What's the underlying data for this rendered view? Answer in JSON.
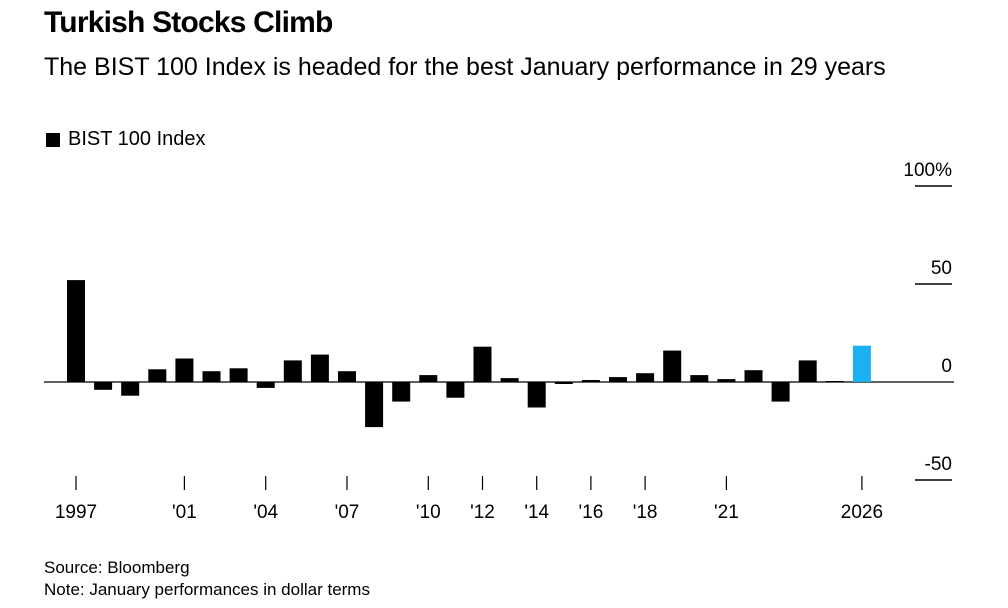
{
  "title": "Turkish Stocks Climb",
  "subtitle": "The BIST 100 Index is headed for the best January performance in 29 years",
  "legend_label": "BIST 100 Index",
  "source": "Source: Bloomberg",
  "note": "Note: January performances in dollar terms",
  "colors": {
    "bar": "#000000",
    "highlight": "#1ab0f2"
  },
  "chart_data": {
    "type": "bar",
    "series": [
      {
        "name": "BIST 100 Index",
        "x": [
          1997,
          1998,
          1999,
          2000,
          2001,
          2002,
          2003,
          2004,
          2005,
          2006,
          2007,
          2008,
          2009,
          2010,
          2011,
          2012,
          2013,
          2014,
          2015,
          2016,
          2017,
          2018,
          2019,
          2020,
          2021,
          2022,
          2023,
          2024,
          2025,
          2026
        ],
        "values": [
          52,
          -4,
          -7,
          6.5,
          12,
          5.5,
          7,
          -3,
          11,
          14,
          5.5,
          -23,
          -10,
          3.5,
          -8,
          18,
          2,
          -13,
          -1,
          1,
          2.5,
          4.5,
          16,
          3.5,
          1.5,
          6,
          -10,
          11,
          0.5,
          18.5
        ]
      }
    ],
    "highlight_year": 2026,
    "y_ticks": [
      {
        "value": 100,
        "label": "100%"
      },
      {
        "value": 50,
        "label": "50"
      },
      {
        "value": 0,
        "label": "0"
      },
      {
        "value": -50,
        "label": "-50"
      }
    ],
    "x_ticks": [
      {
        "value": 1997,
        "label": "1997"
      },
      {
        "value": 2001,
        "label": "'01"
      },
      {
        "value": 2004,
        "label": "'04"
      },
      {
        "value": 2007,
        "label": "'07"
      },
      {
        "value": 2010,
        "label": "'10"
      },
      {
        "value": 2012,
        "label": "'12"
      },
      {
        "value": 2014,
        "label": "'14"
      },
      {
        "value": 2016,
        "label": "'16"
      },
      {
        "value": 2018,
        "label": "'18"
      },
      {
        "value": 2021,
        "label": "'21"
      },
      {
        "value": 2026,
        "label": "2026"
      }
    ],
    "ylim": [
      -50,
      100
    ],
    "xlabel": "",
    "ylabel": "",
    "grid": false,
    "legend_position": "top-left"
  }
}
